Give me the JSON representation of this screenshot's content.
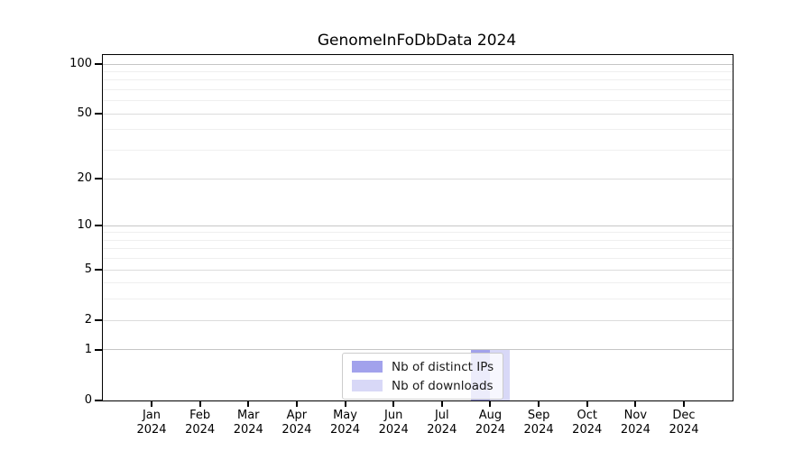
{
  "title": "GenomeInFoDbData 2024",
  "chart_data": {
    "type": "bar",
    "title": "GenomeInFoDbData 2024",
    "categories": [
      "Jan",
      "Feb",
      "Mar",
      "Apr",
      "May",
      "Jun",
      "Jul",
      "Aug",
      "Sep",
      "Oct",
      "Nov",
      "Dec"
    ],
    "year_label": "2024",
    "series": [
      {
        "name": "Nb of distinct IPs",
        "color": "#a2a2ec",
        "values": [
          0,
          0,
          0,
          0,
          0,
          0,
          0,
          1,
          0,
          0,
          0,
          0
        ]
      },
      {
        "name": "Nb of downloads",
        "color": "#d8d8f7",
        "values": [
          0,
          0,
          0,
          0,
          0,
          0,
          0,
          1,
          0,
          0,
          0,
          0
        ]
      }
    ],
    "y_ticks": [
      0,
      1,
      2,
      5,
      10,
      20,
      50,
      100
    ],
    "y_minor_ticks": [
      3,
      4,
      6,
      7,
      8,
      9,
      30,
      40,
      60,
      70,
      80,
      90
    ],
    "y_scale": "log1p",
    "ylim": [
      0,
      115
    ],
    "grid": true,
    "legend_position": "bottom-center",
    "colors": {
      "axis": "#000000",
      "grid_major": "#c6c6c6",
      "grid_mid": "#dcdcdc",
      "grid_minor": "#efefef",
      "background": "#ffffff"
    }
  }
}
